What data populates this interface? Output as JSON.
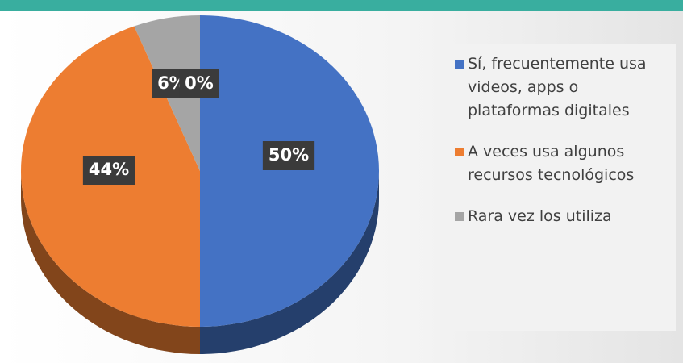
{
  "chart_data": {
    "type": "pie",
    "categories": [
      "Sí, frecuentemente usa videos, apps o plataformas digitales",
      "A veces usa algunos recursos tecnológicos",
      "Rara vez los utiliza",
      null
    ],
    "values": [
      50,
      44,
      6,
      0
    ],
    "value_labels": [
      "50%",
      "44%",
      "6%",
      "0%"
    ],
    "colors": [
      "#4472c4",
      "#ed7d31",
      "#a5a5a5",
      "#ffc000"
    ],
    "legend": "right"
  }
}
